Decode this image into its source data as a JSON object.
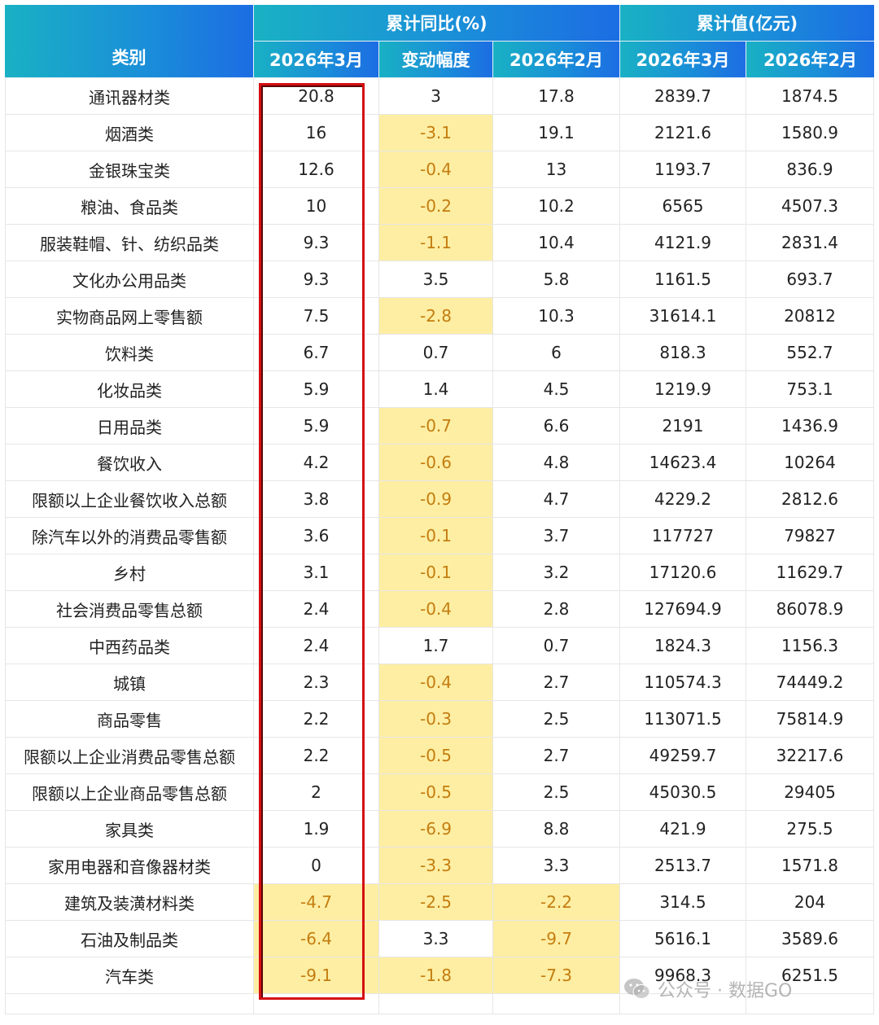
{
  "header": {
    "category": "类别",
    "group_yoy": "累计同比(%)",
    "group_value": "累计值(亿元)",
    "sub": [
      "2026年3月",
      "变动幅度",
      "2026年2月",
      "2026年3月",
      "2026年2月"
    ]
  },
  "colors": {
    "header_from": "#19b1c4",
    "header_to": "#1c6de3",
    "highlight": "#fdeea3",
    "highlight_text": "#c47d10",
    "frame": "#d40f12"
  },
  "rows": [
    {
      "cat": "通讯器材类",
      "m3": "20.8",
      "chg": "3",
      "m2": "17.8",
      "v3": "2839.7",
      "v2": "1874.5",
      "hl": []
    },
    {
      "cat": "烟酒类",
      "m3": "16",
      "chg": "-3.1",
      "m2": "19.1",
      "v3": "2121.6",
      "v2": "1580.9",
      "hl": [
        "chg"
      ]
    },
    {
      "cat": "金银珠宝类",
      "m3": "12.6",
      "chg": "-0.4",
      "m2": "13",
      "v3": "1193.7",
      "v2": "836.9",
      "hl": [
        "chg"
      ]
    },
    {
      "cat": "粮油、食品类",
      "m3": "10",
      "chg": "-0.2",
      "m2": "10.2",
      "v3": "6565",
      "v2": "4507.3",
      "hl": [
        "chg"
      ]
    },
    {
      "cat": "服装鞋帽、针、纺织品类",
      "m3": "9.3",
      "chg": "-1.1",
      "m2": "10.4",
      "v3": "4121.9",
      "v2": "2831.4",
      "hl": [
        "chg"
      ]
    },
    {
      "cat": "文化办公用品类",
      "m3": "9.3",
      "chg": "3.5",
      "m2": "5.8",
      "v3": "1161.5",
      "v2": "693.7",
      "hl": []
    },
    {
      "cat": "实物商品网上零售额",
      "m3": "7.5",
      "chg": "-2.8",
      "m2": "10.3",
      "v3": "31614.1",
      "v2": "20812",
      "hl": [
        "chg"
      ]
    },
    {
      "cat": "饮料类",
      "m3": "6.7",
      "chg": "0.7",
      "m2": "6",
      "v3": "818.3",
      "v2": "552.7",
      "hl": []
    },
    {
      "cat": "化妆品类",
      "m3": "5.9",
      "chg": "1.4",
      "m2": "4.5",
      "v3": "1219.9",
      "v2": "753.1",
      "hl": []
    },
    {
      "cat": "日用品类",
      "m3": "5.9",
      "chg": "-0.7",
      "m2": "6.6",
      "v3": "2191",
      "v2": "1436.9",
      "hl": [
        "chg"
      ]
    },
    {
      "cat": "餐饮收入",
      "m3": "4.2",
      "chg": "-0.6",
      "m2": "4.8",
      "v3": "14623.4",
      "v2": "10264",
      "hl": [
        "chg"
      ]
    },
    {
      "cat": "限额以上企业餐饮收入总额",
      "m3": "3.8",
      "chg": "-0.9",
      "m2": "4.7",
      "v3": "4229.2",
      "v2": "2812.6",
      "hl": [
        "chg"
      ]
    },
    {
      "cat": "除汽车以外的消费品零售额",
      "m3": "3.6",
      "chg": "-0.1",
      "m2": "3.7",
      "v3": "117727",
      "v2": "79827",
      "hl": [
        "chg"
      ]
    },
    {
      "cat": "乡村",
      "m3": "3.1",
      "chg": "-0.1",
      "m2": "3.2",
      "v3": "17120.6",
      "v2": "11629.7",
      "hl": [
        "chg"
      ]
    },
    {
      "cat": "社会消费品零售总额",
      "m3": "2.4",
      "chg": "-0.4",
      "m2": "2.8",
      "v3": "127694.9",
      "v2": "86078.9",
      "hl": [
        "chg"
      ]
    },
    {
      "cat": "中西药品类",
      "m3": "2.4",
      "chg": "1.7",
      "m2": "0.7",
      "v3": "1824.3",
      "v2": "1156.3",
      "hl": []
    },
    {
      "cat": "城镇",
      "m3": "2.3",
      "chg": "-0.4",
      "m2": "2.7",
      "v3": "110574.3",
      "v2": "74449.2",
      "hl": [
        "chg"
      ]
    },
    {
      "cat": "商品零售",
      "m3": "2.2",
      "chg": "-0.3",
      "m2": "2.5",
      "v3": "113071.5",
      "v2": "75814.9",
      "hl": [
        "chg"
      ]
    },
    {
      "cat": "限额以上企业消费品零售总额",
      "m3": "2.2",
      "chg": "-0.5",
      "m2": "2.7",
      "v3": "49259.7",
      "v2": "32217.6",
      "hl": [
        "chg"
      ]
    },
    {
      "cat": "限额以上企业商品零售总额",
      "m3": "2",
      "chg": "-0.5",
      "m2": "2.5",
      "v3": "45030.5",
      "v2": "29405",
      "hl": [
        "chg"
      ]
    },
    {
      "cat": "家具类",
      "m3": "1.9",
      "chg": "-6.9",
      "m2": "8.8",
      "v3": "421.9",
      "v2": "275.5",
      "hl": [
        "chg"
      ]
    },
    {
      "cat": "家用电器和音像器材类",
      "m3": "0",
      "chg": "-3.3",
      "m2": "3.3",
      "v3": "2513.7",
      "v2": "1571.8",
      "hl": [
        "chg"
      ]
    },
    {
      "cat": "建筑及装潢材料类",
      "m3": "-4.7",
      "chg": "-2.5",
      "m2": "-2.2",
      "v3": "314.5",
      "v2": "204",
      "hl": [
        "m3",
        "chg",
        "m2"
      ]
    },
    {
      "cat": "石油及制品类",
      "m3": "-6.4",
      "chg": "3.3",
      "m2": "-9.7",
      "v3": "5616.1",
      "v2": "3589.6",
      "hl": [
        "m3",
        "m2"
      ]
    },
    {
      "cat": "汽车类",
      "m3": "-9.1",
      "chg": "-1.8",
      "m2": "-7.3",
      "v3": "9968.3",
      "v2": "6251.5",
      "hl": [
        "m3",
        "chg",
        "m2"
      ]
    }
  ],
  "watermark": {
    "text": "公众号 · 数据GO",
    "icon": "wechat-icon"
  }
}
